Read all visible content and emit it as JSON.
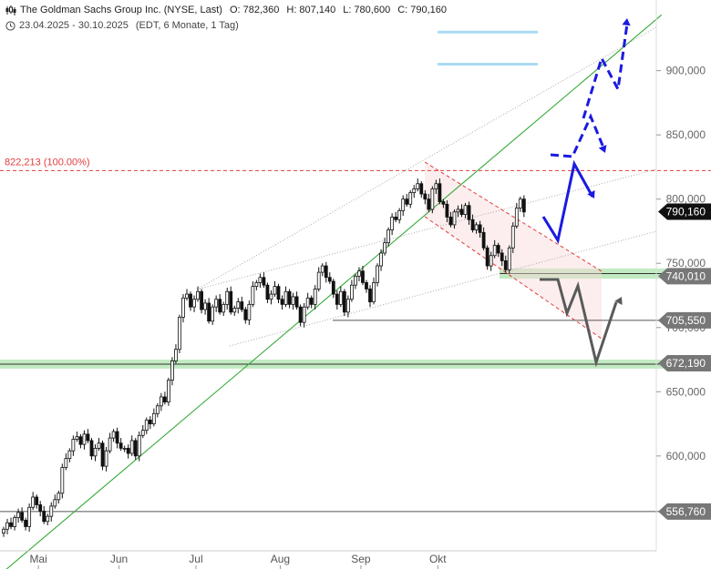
{
  "header": {
    "instrument": "The Goldman Sachs Group Inc. (NYSE, Last)",
    "open": "O: 782,360",
    "high": "H: 807,140",
    "low": "L: 780,600",
    "close": "C: 790,160",
    "range": "23.04.2025 - 30.10.2025",
    "info": "(EDT, 6 Monate, 1 Tag)",
    "chart_icon": "candlestick-icon",
    "clock_icon": "clock-icon"
  },
  "colors": {
    "up": "#ffffff",
    "down": "#111111",
    "support_zone": "#b7e6b7",
    "trend_green": "#3aaa3a",
    "red_level": "#e03c3c",
    "scenario_blue": "#1a1ae0",
    "scenario_gray": "#5a5a5a",
    "ice_blue": "#a9dcf2"
  },
  "chart_data": {
    "type": "candlestick",
    "title": "The Goldman Sachs Group Inc. (NYSE, Last)",
    "ylim": [
      512,
      955
    ],
    "y_ticks": [
      600,
      650,
      700,
      750,
      800,
      850,
      900
    ],
    "y_tick_labels": [
      "600,000",
      "650,000",
      "700,000",
      "750,000",
      "800,000",
      "850,000",
      "900,000"
    ],
    "x_labels": [
      {
        "label": "Mai",
        "date": "2025-05-01"
      },
      {
        "label": "Jun",
        "date": "2025-06-02"
      },
      {
        "label": "Jul",
        "date": "2025-07-01"
      },
      {
        "label": "Aug",
        "date": "2025-08-01"
      },
      {
        "label": "Sep",
        "date": "2025-09-02"
      },
      {
        "label": "Okt",
        "date": "2025-10-01"
      }
    ],
    "price_labels": [
      {
        "label": "790,160",
        "value": 790.16,
        "style": "dark"
      },
      {
        "label": "740,010",
        "value": 740.01,
        "style": "gray"
      },
      {
        "label": "705,550",
        "value": 705.55,
        "style": "gray"
      },
      {
        "label": "672,190",
        "value": 672.19,
        "style": "gray"
      },
      {
        "label": "556,760",
        "value": 556.76,
        "style": "gray"
      }
    ],
    "fib_label": "822,213 (100.00%)",
    "fib_value": 822.213,
    "closes": [
      543,
      548,
      545,
      552,
      556,
      550,
      545,
      560,
      568,
      562,
      557,
      549,
      553,
      561,
      566,
      571,
      591,
      598,
      604,
      613,
      615,
      609,
      617,
      612,
      600,
      606,
      610,
      592,
      604,
      614,
      619,
      610,
      606,
      606,
      602,
      612,
      600,
      616,
      620,
      628,
      625,
      633,
      639,
      646,
      642,
      659,
      674,
      683,
      708,
      723,
      726,
      716,
      722,
      728,
      714,
      719,
      705,
      716,
      722,
      712,
      718,
      728,
      712,
      715,
      720,
      714,
      706,
      718,
      732,
      735,
      739,
      733,
      722,
      726,
      732,
      722,
      718,
      728,
      718,
      724,
      716,
      704,
      716,
      723,
      718,
      730,
      743,
      748,
      739,
      736,
      726,
      718,
      728,
      712,
      722,
      733,
      740,
      744,
      735,
      730,
      720,
      735,
      748,
      758,
      766,
      776,
      786,
      784,
      791,
      800,
      796,
      805,
      808,
      812,
      804,
      800,
      792,
      808,
      812,
      798,
      796,
      786,
      780,
      790,
      792,
      788,
      795,
      784,
      776,
      780,
      774,
      762,
      748,
      756,
      764,
      758,
      752,
      745,
      762,
      779,
      793,
      800,
      790
    ]
  },
  "annotations": {
    "ice_levels": [
      930,
      905
    ],
    "support_zones": [
      [
        738,
        746
      ],
      [
        668,
        675
      ]
    ],
    "green_trendline": [
      [
        0,
        510
      ],
      [
        141,
        942
      ]
    ],
    "hlines": [
      705.55,
      556.76
    ]
  }
}
